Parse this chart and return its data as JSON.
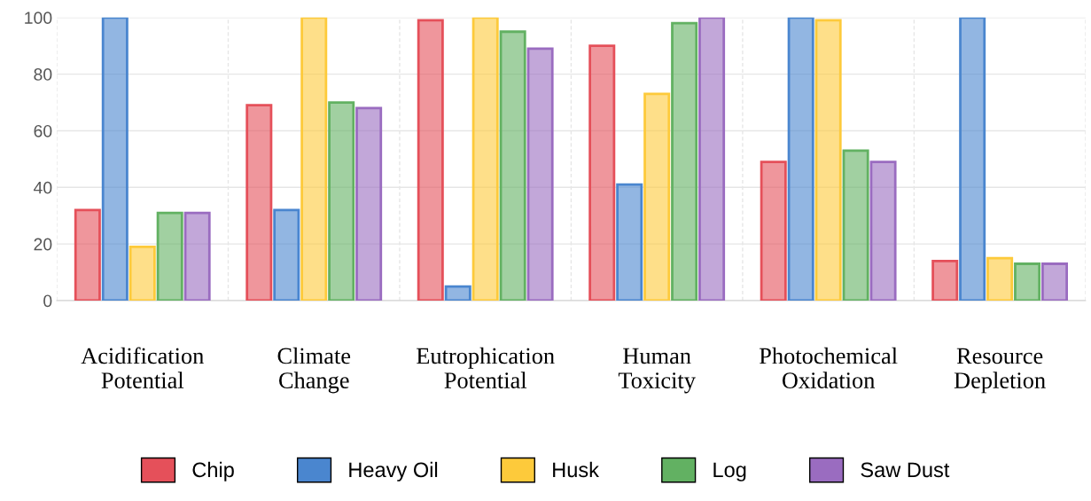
{
  "chart_data": {
    "type": "bar",
    "categories": [
      "Acidification Potential",
      "Climate Change",
      "Eutrophication Potential",
      "Human Toxicity",
      "Photochemical Oxidation",
      "Resource Depletion"
    ],
    "series": [
      {
        "name": "Chip",
        "color": "#e5505a",
        "values": [
          32,
          69,
          99,
          90,
          49,
          14
        ]
      },
      {
        "name": "Heavy Oil",
        "color": "#4a86cf",
        "values": [
          100,
          32,
          5,
          41,
          100,
          100
        ]
      },
      {
        "name": "Husk",
        "color": "#fdca3b",
        "values": [
          19,
          100,
          100,
          73,
          99,
          15
        ]
      },
      {
        "name": "Log",
        "color": "#62b162",
        "values": [
          31,
          70,
          95,
          98,
          53,
          13
        ]
      },
      {
        "name": "Saw Dust",
        "color": "#9a6cc0",
        "values": [
          31,
          68,
          89,
          100,
          49,
          13
        ]
      }
    ],
    "ylim": [
      0,
      100
    ],
    "yticks": [
      0,
      20,
      40,
      60,
      80,
      100
    ],
    "grid": true,
    "legend": "bottom"
  }
}
